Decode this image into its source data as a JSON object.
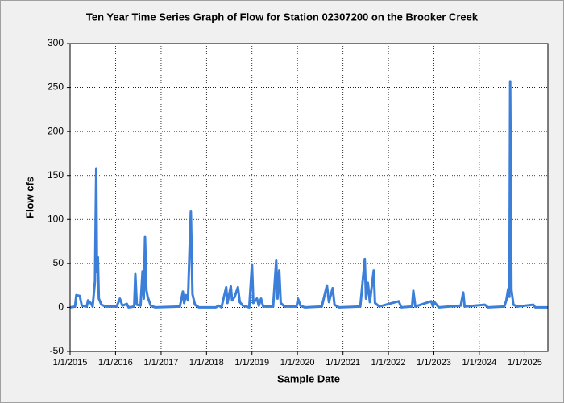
{
  "chart_data": {
    "type": "line",
    "title": "Ten Year Time Series Graph of Flow for Station 02307200 on the Brooker Creek",
    "x_label": "Sample Date",
    "y_label": "Flow cfs",
    "color": "#3b7fd9",
    "xlim": [
      "2015-01-01",
      "2025-07-05"
    ],
    "xticks": [
      {
        "value": "2015-01-01",
        "label": "1/1/2015"
      },
      {
        "value": "2016-01-01",
        "label": "1/1/2016"
      },
      {
        "value": "2017-01-01",
        "label": "1/1/2017"
      },
      {
        "value": "2018-01-01",
        "label": "1/1/2018"
      },
      {
        "value": "2019-01-01",
        "label": "1/1/2019"
      },
      {
        "value": "2020-01-01",
        "label": "1/1/2020"
      },
      {
        "value": "2021-01-01",
        "label": "1/1/2021"
      },
      {
        "value": "2022-01-01",
        "label": "1/1/2022"
      },
      {
        "value": "2023-01-01",
        "label": "1/1/2023"
      },
      {
        "value": "2024-01-01",
        "label": "1/1/2024"
      },
      {
        "value": "2025-01-01",
        "label": "1/1/2025"
      }
    ],
    "ylim": [
      -50,
      300
    ],
    "yticks": [
      -50,
      0,
      50,
      100,
      150,
      200,
      250,
      300
    ],
    "grid": true,
    "x": [
      "2015-01-01",
      "2015-02-10",
      "2015-02-20",
      "2015-03-20",
      "2015-04-05",
      "2015-05-15",
      "2015-05-25",
      "2015-06-15",
      "2015-07-01",
      "2015-07-20",
      "2015-07-25",
      "2015-07-30",
      "2015-08-05",
      "2015-08-12",
      "2015-08-20",
      "2015-09-10",
      "2015-10-15",
      "2016-01-10",
      "2016-02-05",
      "2016-02-25",
      "2016-04-01",
      "2016-04-15",
      "2016-05-30",
      "2016-06-08",
      "2016-06-20",
      "2016-07-20",
      "2016-08-05",
      "2016-08-15",
      "2016-08-25",
      "2016-09-05",
      "2016-09-15",
      "2016-10-10",
      "2016-11-15",
      "2017-06-01",
      "2017-06-25",
      "2017-07-05",
      "2017-07-20",
      "2017-08-05",
      "2017-08-20",
      "2017-08-28",
      "2017-09-10",
      "2017-09-30",
      "2017-11-01",
      "2018-03-15",
      "2018-04-10",
      "2018-05-01",
      "2018-06-08",
      "2018-06-18",
      "2018-07-15",
      "2018-07-25",
      "2018-08-15",
      "2018-09-10",
      "2018-09-25",
      "2018-10-20",
      "2018-12-10",
      "2019-01-01",
      "2019-01-12",
      "2019-02-10",
      "2019-02-25",
      "2019-03-15",
      "2019-04-01",
      "2019-06-20",
      "2019-07-15",
      "2019-07-25",
      "2019-08-08",
      "2019-08-20",
      "2019-09-20",
      "2019-12-25",
      "2020-01-05",
      "2020-01-25",
      "2020-03-01",
      "2020-07-15",
      "2020-08-25",
      "2020-09-10",
      "2020-10-10",
      "2020-10-25",
      "2020-12-01",
      "2021-05-20",
      "2021-06-25",
      "2021-07-05",
      "2021-07-20",
      "2021-08-05",
      "2021-09-05",
      "2021-09-15",
      "2021-10-20",
      "2022-03-25",
      "2022-04-15",
      "2022-07-10",
      "2022-07-20",
      "2022-08-05",
      "2022-12-10",
      "2022-12-25",
      "2023-01-05",
      "2023-02-10",
      "2023-08-05",
      "2023-08-25",
      "2023-09-05",
      "2024-02-15",
      "2024-03-10",
      "2024-07-20",
      "2024-08-05",
      "2024-08-20",
      "2024-08-30",
      "2024-09-05",
      "2024-09-15",
      "2024-10-01",
      "2024-11-01",
      "2025-03-10",
      "2025-03-25",
      "2025-07-05"
    ],
    "values": [
      0,
      1,
      14,
      13,
      2,
      1,
      8,
      5,
      1,
      30,
      95,
      158,
      40,
      57,
      10,
      3,
      1,
      1,
      10,
      2,
      4,
      0,
      1,
      38,
      3,
      2,
      41,
      10,
      80,
      20,
      12,
      2,
      0,
      1,
      18,
      5,
      14,
      8,
      77,
      109,
      15,
      3,
      0,
      0,
      2,
      0,
      23,
      5,
      24,
      8,
      12,
      23,
      6,
      2,
      0,
      49,
      5,
      10,
      2,
      10,
      1,
      1,
      54,
      10,
      42,
      5,
      1,
      1,
      10,
      2,
      0,
      1,
      25,
      6,
      22,
      3,
      0,
      1,
      55,
      10,
      28,
      6,
      42,
      5,
      1,
      7,
      0,
      1,
      19,
      1,
      7,
      1,
      6,
      0,
      2,
      17,
      1,
      3,
      0,
      1,
      8,
      21,
      12,
      257,
      20,
      3,
      1,
      3,
      0,
      0
    ]
  }
}
